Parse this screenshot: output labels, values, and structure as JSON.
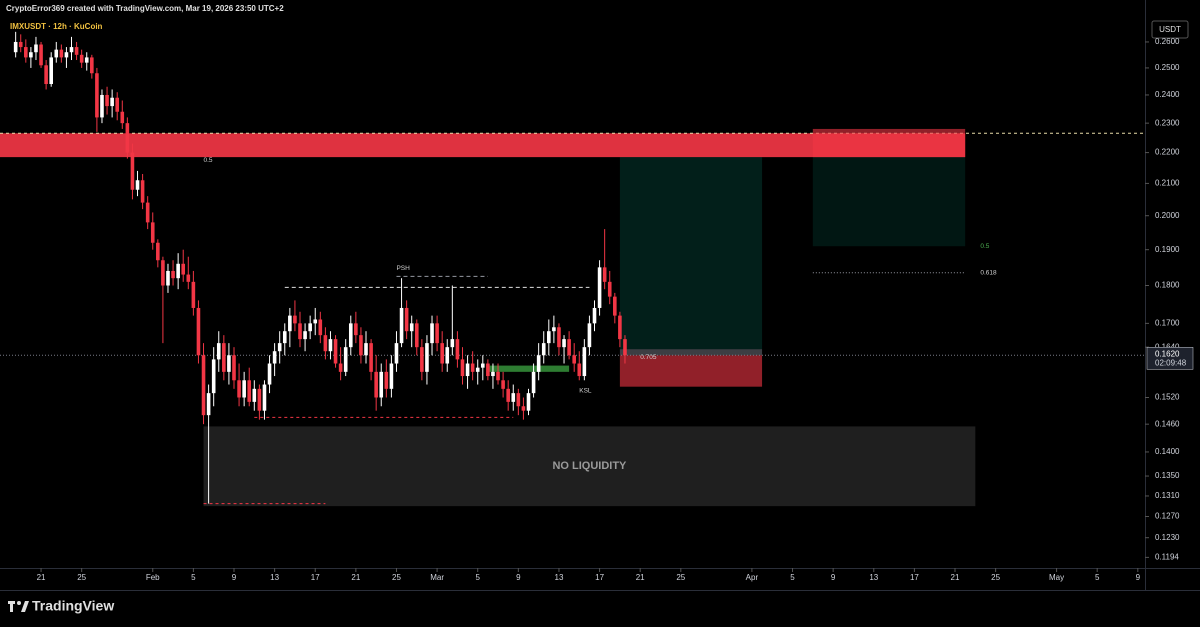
{
  "chart_data": {
    "type": "candlestick",
    "title": "CryptoError369 created with TradingView.com, Mar 19, 2026 23:50 UTC+2",
    "subtitle": "IMXUSDT · 12h · KuCoin",
    "y_unit": "USDT",
    "brand": "TradingView",
    "log_scale": true,
    "up_color": "#ffffff",
    "down_color": "#f23645",
    "xlim": [
      "2026-01-16T23:00",
      "2026-05-09T17:00"
    ],
    "ylim": [
      0.1175,
      0.277
    ],
    "yticks": [
      {
        "value": 0.26,
        "label": "0.2600"
      },
      {
        "value": 0.25,
        "label": "0.2500"
      },
      {
        "value": 0.24,
        "label": "0.2400"
      },
      {
        "value": 0.23,
        "label": "0.2300"
      },
      {
        "value": 0.22,
        "label": "0.2200"
      },
      {
        "value": 0.21,
        "label": "0.2100"
      },
      {
        "value": 0.2,
        "label": "0.2000"
      },
      {
        "value": 0.19,
        "label": "0.1900"
      },
      {
        "value": 0.18,
        "label": "0.1800"
      },
      {
        "value": 0.17,
        "label": "0.1700"
      },
      {
        "value": 0.164,
        "label": "0.1640"
      },
      {
        "value": 0.152,
        "label": "0.1520"
      },
      {
        "value": 0.146,
        "label": "0.1460"
      },
      {
        "value": 0.14,
        "label": "0.1400"
      },
      {
        "value": 0.135,
        "label": "0.1350"
      },
      {
        "value": 0.131,
        "label": "0.1310"
      },
      {
        "value": 0.127,
        "label": "0.1270"
      },
      {
        "value": 0.123,
        "label": "0.1230"
      },
      {
        "value": 0.1194,
        "label": "0.1194"
      }
    ],
    "xticks": [
      {
        "value": "2026-01-21",
        "label": "21"
      },
      {
        "value": "2026-01-25",
        "label": "25"
      },
      {
        "value": "2026-02-01",
        "label": "Feb"
      },
      {
        "value": "2026-02-05",
        "label": "5"
      },
      {
        "value": "2026-02-09",
        "label": "9"
      },
      {
        "value": "2026-02-13",
        "label": "13"
      },
      {
        "value": "2026-02-17",
        "label": "17"
      },
      {
        "value": "2026-02-21",
        "label": "21"
      },
      {
        "value": "2026-02-25",
        "label": "25"
      },
      {
        "value": "2026-03-01",
        "label": "Mar"
      },
      {
        "value": "2026-03-05",
        "label": "5"
      },
      {
        "value": "2026-03-09",
        "label": "9"
      },
      {
        "value": "2026-03-13",
        "label": "13"
      },
      {
        "value": "2026-03-17",
        "label": "17"
      },
      {
        "value": "2026-03-21",
        "label": "21"
      },
      {
        "value": "2026-03-25",
        "label": "25"
      },
      {
        "value": "2026-04-01",
        "label": "Apr"
      },
      {
        "value": "2026-04-05",
        "label": "5"
      },
      {
        "value": "2026-04-09",
        "label": "9"
      },
      {
        "value": "2026-04-13",
        "label": "13"
      },
      {
        "value": "2026-04-17",
        "label": "17"
      },
      {
        "value": "2026-04-21",
        "label": "21"
      },
      {
        "value": "2026-04-25",
        "label": "25"
      },
      {
        "value": "2026-05-01",
        "label": "May"
      },
      {
        "value": "2026-05-05",
        "label": "5"
      },
      {
        "value": "2026-05-09",
        "label": "9"
      }
    ],
    "current_price": {
      "value": 0.162,
      "label": "0.1620",
      "countdown": "02:09:48"
    },
    "x": [
      "2026-01-18T12:00",
      "2026-01-19T00:00",
      "2026-01-19T12:00",
      "2026-01-20T00:00",
      "2026-01-20T12:00",
      "2026-01-21T00:00",
      "2026-01-21T12:00",
      "2026-01-22T00:00",
      "2026-01-22T12:00",
      "2026-01-23T00:00",
      "2026-01-23T12:00",
      "2026-01-24T00:00",
      "2026-01-24T12:00",
      "2026-01-25T00:00",
      "2026-01-25T12:00",
      "2026-01-26T00:00",
      "2026-01-26T12:00",
      "2026-01-27T00:00",
      "2026-01-27T12:00",
      "2026-01-28T00:00",
      "2026-01-28T12:00",
      "2026-01-29T00:00",
      "2026-01-29T12:00",
      "2026-01-30T00:00",
      "2026-01-30T12:00",
      "2026-01-31T00:00",
      "2026-01-31T12:00",
      "2026-02-01T00:00",
      "2026-02-01T12:00",
      "2026-02-02T00:00",
      "2026-02-02T12:00",
      "2026-02-03T00:00",
      "2026-02-03T12:00",
      "2026-02-04T00:00",
      "2026-02-04T12:00",
      "2026-02-05T00:00",
      "2026-02-05T12:00",
      "2026-02-06T00:00",
      "2026-02-06T12:00",
      "2026-02-07T00:00",
      "2026-02-07T12:00",
      "2026-02-08T00:00",
      "2026-02-08T12:00",
      "2026-02-09T00:00",
      "2026-02-09T12:00",
      "2026-02-10T00:00",
      "2026-02-10T12:00",
      "2026-02-11T00:00",
      "2026-02-11T12:00",
      "2026-02-12T00:00",
      "2026-02-12T12:00",
      "2026-02-13T00:00",
      "2026-02-13T12:00",
      "2026-02-14T00:00",
      "2026-02-14T12:00",
      "2026-02-15T00:00",
      "2026-02-15T12:00",
      "2026-02-16T00:00",
      "2026-02-16T12:00",
      "2026-02-17T00:00",
      "2026-02-17T12:00",
      "2026-02-18T00:00",
      "2026-02-18T12:00",
      "2026-02-19T00:00",
      "2026-02-19T12:00",
      "2026-02-20T00:00",
      "2026-02-20T12:00",
      "2026-02-21T00:00",
      "2026-02-21T12:00",
      "2026-02-22T00:00",
      "2026-02-22T12:00",
      "2026-02-23T00:00",
      "2026-02-23T12:00",
      "2026-02-24T00:00",
      "2026-02-24T12:00",
      "2026-02-25T00:00",
      "2026-02-25T12:00",
      "2026-02-26T00:00",
      "2026-02-26T12:00",
      "2026-02-27T00:00",
      "2026-02-27T12:00",
      "2026-02-28T00:00",
      "2026-02-28T12:00",
      "2026-03-01T00:00",
      "2026-03-01T12:00",
      "2026-03-02T00:00",
      "2026-03-02T12:00",
      "2026-03-03T00:00",
      "2026-03-03T12:00",
      "2026-03-04T00:00",
      "2026-03-04T12:00",
      "2026-03-05T00:00",
      "2026-03-05T12:00",
      "2026-03-06T00:00",
      "2026-03-06T12:00",
      "2026-03-07T00:00",
      "2026-03-07T12:00",
      "2026-03-08T00:00",
      "2026-03-08T12:00",
      "2026-03-09T00:00",
      "2026-03-09T12:00",
      "2026-03-10T00:00",
      "2026-03-10T12:00",
      "2026-03-11T00:00",
      "2026-03-11T12:00",
      "2026-03-12T00:00",
      "2026-03-12T12:00",
      "2026-03-13T00:00",
      "2026-03-13T12:00",
      "2026-03-14T00:00",
      "2026-03-14T12:00",
      "2026-03-15T00:00",
      "2026-03-15T12:00",
      "2026-03-16T00:00",
      "2026-03-16T12:00",
      "2026-03-17T00:00",
      "2026-03-17T12:00",
      "2026-03-18T00:00",
      "2026-03-18T12:00",
      "2026-03-19T00:00",
      "2026-03-19T12:00"
    ],
    "ohlc": [
      [
        0.256,
        0.264,
        0.254,
        0.26
      ],
      [
        0.26,
        0.263,
        0.256,
        0.258
      ],
      [
        0.258,
        0.261,
        0.252,
        0.254
      ],
      [
        0.254,
        0.258,
        0.25,
        0.256
      ],
      [
        0.256,
        0.262,
        0.253,
        0.259
      ],
      [
        0.259,
        0.26,
        0.25,
        0.251
      ],
      [
        0.251,
        0.253,
        0.242,
        0.244
      ],
      [
        0.244,
        0.256,
        0.243,
        0.254
      ],
      [
        0.254,
        0.26,
        0.252,
        0.257
      ],
      [
        0.257,
        0.259,
        0.252,
        0.254
      ],
      [
        0.254,
        0.258,
        0.25,
        0.256
      ],
      [
        0.256,
        0.262,
        0.253,
        0.258
      ],
      [
        0.258,
        0.26,
        0.253,
        0.255
      ],
      [
        0.255,
        0.257,
        0.25,
        0.252
      ],
      [
        0.252,
        0.256,
        0.249,
        0.254
      ],
      [
        0.254,
        0.255,
        0.246,
        0.248
      ],
      [
        0.248,
        0.25,
        0.227,
        0.232
      ],
      [
        0.232,
        0.242,
        0.23,
        0.24
      ],
      [
        0.24,
        0.243,
        0.233,
        0.236
      ],
      [
        0.236,
        0.242,
        0.232,
        0.239
      ],
      [
        0.239,
        0.241,
        0.231,
        0.234
      ],
      [
        0.234,
        0.238,
        0.228,
        0.23
      ],
      [
        0.23,
        0.232,
        0.218,
        0.22
      ],
      [
        0.22,
        0.223,
        0.205,
        0.208
      ],
      [
        0.208,
        0.214,
        0.206,
        0.211
      ],
      [
        0.211,
        0.213,
        0.202,
        0.204
      ],
      [
        0.204,
        0.206,
        0.196,
        0.198
      ],
      [
        0.198,
        0.201,
        0.19,
        0.192
      ],
      [
        0.192,
        0.193,
        0.185,
        0.187
      ],
      [
        0.187,
        0.188,
        0.165,
        0.18
      ],
      [
        0.18,
        0.186,
        0.178,
        0.184
      ],
      [
        0.184,
        0.187,
        0.18,
        0.182
      ],
      [
        0.182,
        0.189,
        0.179,
        0.186
      ],
      [
        0.186,
        0.19,
        0.181,
        0.183
      ],
      [
        0.183,
        0.188,
        0.179,
        0.181
      ],
      [
        0.181,
        0.184,
        0.172,
        0.174
      ],
      [
        0.174,
        0.176,
        0.16,
        0.162
      ],
      [
        0.162,
        0.165,
        0.146,
        0.148
      ],
      [
        0.148,
        0.155,
        0.1295,
        0.153
      ],
      [
        0.153,
        0.164,
        0.15,
        0.161
      ],
      [
        0.161,
        0.168,
        0.158,
        0.165
      ],
      [
        0.165,
        0.167,
        0.156,
        0.158
      ],
      [
        0.158,
        0.165,
        0.155,
        0.162
      ],
      [
        0.162,
        0.164,
        0.154,
        0.156
      ],
      [
        0.156,
        0.16,
        0.15,
        0.152
      ],
      [
        0.152,
        0.158,
        0.15,
        0.156
      ],
      [
        0.156,
        0.159,
        0.15,
        0.151
      ],
      [
        0.151,
        0.156,
        0.149,
        0.154
      ],
      [
        0.154,
        0.155,
        0.147,
        0.149
      ],
      [
        0.149,
        0.156,
        0.147,
        0.155
      ],
      [
        0.155,
        0.162,
        0.153,
        0.16
      ],
      [
        0.16,
        0.165,
        0.157,
        0.163
      ],
      [
        0.163,
        0.168,
        0.16,
        0.165
      ],
      [
        0.165,
        0.17,
        0.162,
        0.168
      ],
      [
        0.168,
        0.174,
        0.164,
        0.172
      ],
      [
        0.172,
        0.176,
        0.168,
        0.17
      ],
      [
        0.17,
        0.173,
        0.164,
        0.166
      ],
      [
        0.166,
        0.17,
        0.163,
        0.168
      ],
      [
        0.168,
        0.172,
        0.166,
        0.17
      ],
      [
        0.17,
        0.174,
        0.167,
        0.171
      ],
      [
        0.171,
        0.173,
        0.165,
        0.167
      ],
      [
        0.167,
        0.169,
        0.161,
        0.163
      ],
      [
        0.163,
        0.168,
        0.161,
        0.166
      ],
      [
        0.166,
        0.167,
        0.159,
        0.16
      ],
      [
        0.16,
        0.164,
        0.156,
        0.158
      ],
      [
        0.158,
        0.166,
        0.157,
        0.164
      ],
      [
        0.164,
        0.172,
        0.162,
        0.17
      ],
      [
        0.17,
        0.173,
        0.165,
        0.167
      ],
      [
        0.167,
        0.169,
        0.16,
        0.162
      ],
      [
        0.162,
        0.168,
        0.16,
        0.165
      ],
      [
        0.165,
        0.166,
        0.156,
        0.158
      ],
      [
        0.158,
        0.162,
        0.149,
        0.152
      ],
      [
        0.152,
        0.16,
        0.15,
        0.158
      ],
      [
        0.158,
        0.161,
        0.152,
        0.154
      ],
      [
        0.154,
        0.162,
        0.152,
        0.16
      ],
      [
        0.16,
        0.168,
        0.158,
        0.165
      ],
      [
        0.165,
        0.182,
        0.164,
        0.174
      ],
      [
        0.174,
        0.176,
        0.166,
        0.168
      ],
      [
        0.168,
        0.172,
        0.164,
        0.17
      ],
      [
        0.17,
        0.171,
        0.162,
        0.164
      ],
      [
        0.164,
        0.166,
        0.156,
        0.158
      ],
      [
        0.158,
        0.167,
        0.155,
        0.165
      ],
      [
        0.165,
        0.172,
        0.162,
        0.17
      ],
      [
        0.17,
        0.172,
        0.163,
        0.165
      ],
      [
        0.165,
        0.168,
        0.158,
        0.16
      ],
      [
        0.16,
        0.166,
        0.158,
        0.164
      ],
      [
        0.164,
        0.18,
        0.162,
        0.166
      ],
      [
        0.166,
        0.168,
        0.159,
        0.161
      ],
      [
        0.161,
        0.164,
        0.155,
        0.157
      ],
      [
        0.157,
        0.162,
        0.154,
        0.16
      ],
      [
        0.16,
        0.163,
        0.156,
        0.158
      ],
      [
        0.158,
        0.161,
        0.155,
        0.159
      ],
      [
        0.159,
        0.162,
        0.156,
        0.16
      ],
      [
        0.16,
        0.161,
        0.156,
        0.157
      ],
      [
        0.157,
        0.16,
        0.154,
        0.158
      ],
      [
        0.158,
        0.16,
        0.155,
        0.156
      ],
      [
        0.156,
        0.158,
        0.152,
        0.154
      ],
      [
        0.154,
        0.156,
        0.149,
        0.151
      ],
      [
        0.151,
        0.155,
        0.149,
        0.153
      ],
      [
        0.153,
        0.154,
        0.148,
        0.15
      ],
      [
        0.15,
        0.152,
        0.147,
        0.149
      ],
      [
        0.149,
        0.154,
        0.148,
        0.153
      ],
      [
        0.153,
        0.16,
        0.152,
        0.158
      ],
      [
        0.158,
        0.165,
        0.156,
        0.162
      ],
      [
        0.162,
        0.168,
        0.16,
        0.165
      ],
      [
        0.165,
        0.171,
        0.162,
        0.168
      ],
      [
        0.168,
        0.172,
        0.165,
        0.169
      ],
      [
        0.169,
        0.17,
        0.162,
        0.164
      ],
      [
        0.164,
        0.167,
        0.16,
        0.166
      ],
      [
        0.166,
        0.168,
        0.161,
        0.162
      ],
      [
        0.162,
        0.165,
        0.158,
        0.16
      ],
      [
        0.16,
        0.163,
        0.156,
        0.157
      ],
      [
        0.157,
        0.166,
        0.156,
        0.164
      ],
      [
        0.164,
        0.172,
        0.162,
        0.17
      ],
      [
        0.17,
        0.176,
        0.168,
        0.174
      ],
      [
        0.174,
        0.187,
        0.172,
        0.185
      ],
      [
        0.185,
        0.196,
        0.179,
        0.181
      ],
      [
        0.181,
        0.184,
        0.175,
        0.177
      ],
      [
        0.177,
        0.178,
        0.17,
        0.172
      ],
      [
        0.172,
        0.173,
        0.164,
        0.166
      ],
      [
        0.166,
        0.167,
        0.16,
        0.162
      ]
    ],
    "annotations": [
      {
        "kind": "rect",
        "x0": "2026-01-16T23:00",
        "x1": "2026-04-22T00:00",
        "y0": 0.2185,
        "y1": 0.2265,
        "color": "rgba(242,54,69,0.92)"
      },
      {
        "kind": "hline",
        "x0": "2026-01-16T23:00",
        "x1": "2026-05-09T17:00",
        "y": 0.2265,
        "color": "#e8dca8",
        "dash": "3 3"
      },
      {
        "kind": "text",
        "x": "2026-02-06T00:00",
        "y": 0.2175,
        "text": "0.5",
        "color": "#d0d0d0"
      },
      {
        "kind": "rect",
        "x0": "2026-03-19T00:00",
        "x1": "2026-04-02T00:00",
        "y0": 0.1635,
        "y1": 0.2185,
        "color": "rgba(8,153,129,0.2)"
      },
      {
        "kind": "rect",
        "x0": "2026-03-19T00:00",
        "x1": "2026-04-02T00:00",
        "y0": 0.162,
        "y1": 0.1635,
        "color": "rgba(120,123,134,0.5)"
      },
      {
        "kind": "rect",
        "x0": "2026-03-19T00:00",
        "x1": "2026-04-02T00:00",
        "y0": 0.1545,
        "y1": 0.162,
        "color": "rgba(242,54,69,0.6)"
      },
      {
        "kind": "text",
        "x": "2026-03-21T00:00",
        "y": 0.1615,
        "text": "0.705",
        "color": "#d0d0d0"
      },
      {
        "kind": "rect",
        "x0": "2026-04-07T00:00",
        "x1": "2026-04-22T00:00",
        "y0": 0.2185,
        "y1": 0.228,
        "color": "rgba(242,54,69,0.6)"
      },
      {
        "kind": "rect",
        "x0": "2026-04-07T00:00",
        "x1": "2026-04-22T00:00",
        "y0": 0.191,
        "y1": 0.2185,
        "color": "rgba(8,153,129,0.15)"
      },
      {
        "kind": "text",
        "x": "2026-04-23T12:00",
        "y": 0.191,
        "text": "0.5",
        "color": "#4caf50"
      },
      {
        "kind": "hline",
        "x0": "2026-04-07T00:00",
        "x1": "2026-04-22T00:00",
        "y": 0.1835,
        "color": "#9598a1",
        "dash": "1 2"
      },
      {
        "kind": "text",
        "x": "2026-04-23T12:00",
        "y": 0.1835,
        "text": "0.618",
        "color": "#d0d0d0"
      },
      {
        "kind": "rect",
        "x0": "2026-02-06T00:00",
        "x1": "2026-04-23T00:00",
        "y0": 0.129,
        "y1": 0.1455,
        "color": "rgba(36,36,36,0.85)",
        "text": "NO LIQUIDITY"
      },
      {
        "kind": "hline",
        "x0": "2026-02-06T00:00",
        "x1": "2026-02-18T00:00",
        "y": 0.1295,
        "color": "#f23645",
        "dash": "3 3"
      },
      {
        "kind": "hline",
        "x0": "2026-02-11T00:00",
        "x1": "2026-03-08T12:00",
        "y": 0.1475,
        "color": "#f23645",
        "dash": "3 3"
      },
      {
        "kind": "hline",
        "x0": "2026-02-14T00:00",
        "x1": "2026-03-16T00:00",
        "y": 0.1795,
        "color": "#e0e0e0",
        "dash": "4 3"
      },
      {
        "kind": "hline",
        "x0": "2026-02-25T00:00",
        "x1": "2026-03-06T00:00",
        "y": 0.1825,
        "color": "#9598a1",
        "dash": "4 3"
      },
      {
        "kind": "text",
        "x": "2026-02-25T00:00",
        "y": 0.1848,
        "text": "PSH",
        "color": "#d0d0d0"
      },
      {
        "kind": "rect",
        "x0": "2026-03-06T00:00",
        "x1": "2026-03-14T00:00",
        "y0": 0.158,
        "y1": 0.1595,
        "color": "#2e7d32"
      },
      {
        "kind": "text",
        "x": "2026-03-15T00:00",
        "y": 0.1535,
        "text": "KSL",
        "color": "#d0d0d0"
      },
      {
        "kind": "hline",
        "x0": "2026-01-16T23:00",
        "x1": "2026-05-09T17:00",
        "y": 0.162,
        "color": "#787b86",
        "dash": "1 2"
      }
    ]
  }
}
